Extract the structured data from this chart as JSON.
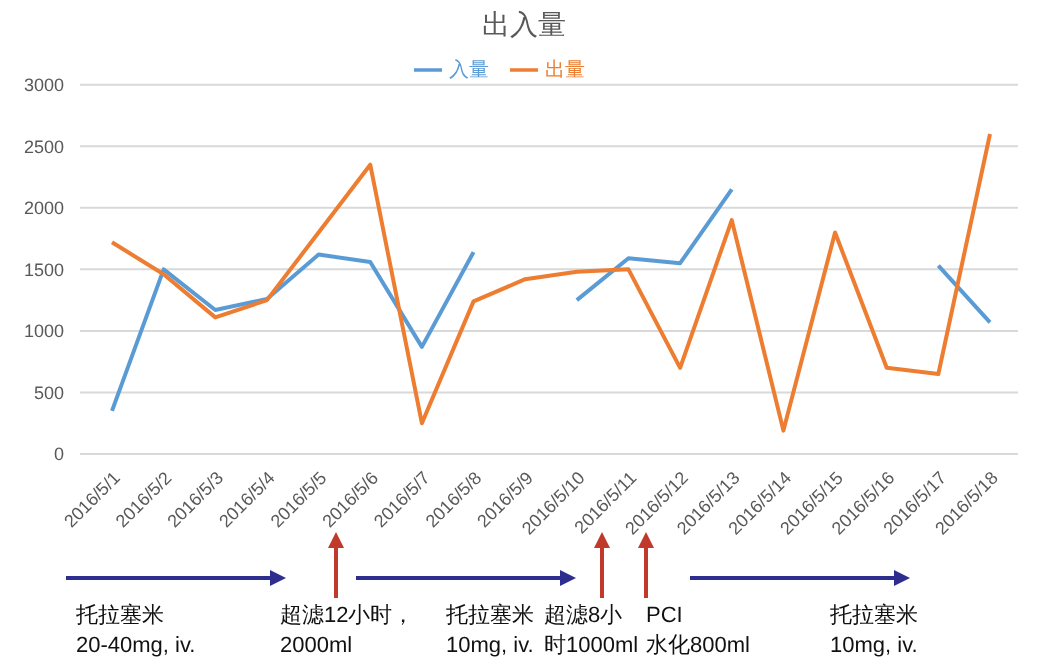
{
  "chart_data": {
    "type": "line",
    "title": "出入量",
    "categories": [
      "2016/5/1",
      "2016/5/2",
      "2016/5/3",
      "2016/5/4",
      "2016/5/5",
      "2016/5/6",
      "2016/5/7",
      "2016/5/8",
      "2016/5/9",
      "2016/5/10",
      "2016/5/11",
      "2016/5/12",
      "2016/5/13",
      "2016/5/14",
      "2016/5/15",
      "2016/5/16",
      "2016/5/17",
      "2016/5/18"
    ],
    "series": [
      {
        "name": "入量",
        "color": "#5b9bd5",
        "values": [
          350,
          1500,
          1170,
          1260,
          1620,
          1560,
          870,
          1640,
          null,
          1250,
          1590,
          1550,
          2150,
          null,
          null,
          null,
          1530,
          1070
        ]
      },
      {
        "name": "出量",
        "color": "#ed7d31",
        "values": [
          1720,
          1460,
          1110,
          1250,
          1800,
          2350,
          250,
          1240,
          1420,
          1480,
          1500,
          700,
          1900,
          190,
          1800,
          700,
          650,
          2600
        ]
      }
    ],
    "ylim": [
      0,
      3000
    ],
    "yticks": [
      0,
      500,
      1000,
      1500,
      2000,
      2500,
      3000
    ],
    "grid": "y",
    "legend": "top",
    "annotations": [
      "托拉塞米\n20-40mg, iv.",
      "超滤12小时，\n2000ml",
      "托拉塞米\n10mg, iv.",
      "超滤8小时1000ml",
      "PCI\n水化800ml",
      "托拉塞米\n10mg, iv."
    ]
  }
}
